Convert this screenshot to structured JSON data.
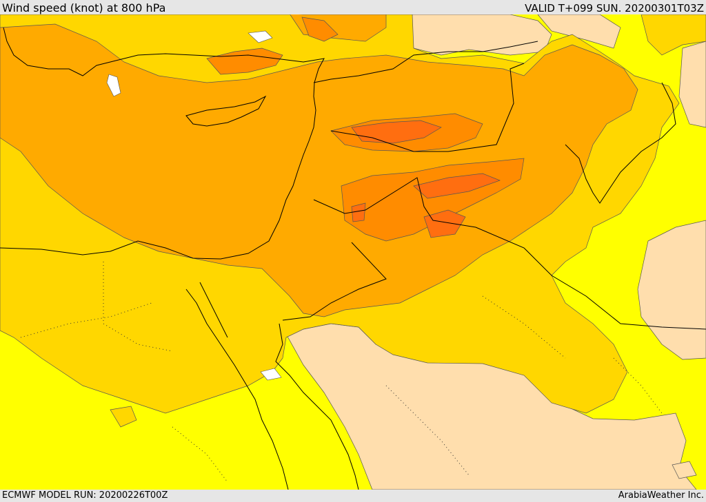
{
  "header": {
    "title": "Wind speed (knot) at 800 hPa",
    "valid": "VALID T+099 SUN. 20200301T03Z"
  },
  "footer": {
    "model_run": "ECMWF MODEL RUN: 20200226T00Z",
    "credit": "ArabiaWeather Inc."
  },
  "colors": {
    "band_lowest": "#ffdead",
    "band_low": "#ffff00",
    "band_mid": "#ffd700",
    "band_high": "#ffaa00",
    "band_higher": "#ff8c00",
    "band_max": "#ff6e10",
    "calm_spots": "#ffffff",
    "boundaries": "#000000",
    "chrome": "#e6e6e6"
  }
}
